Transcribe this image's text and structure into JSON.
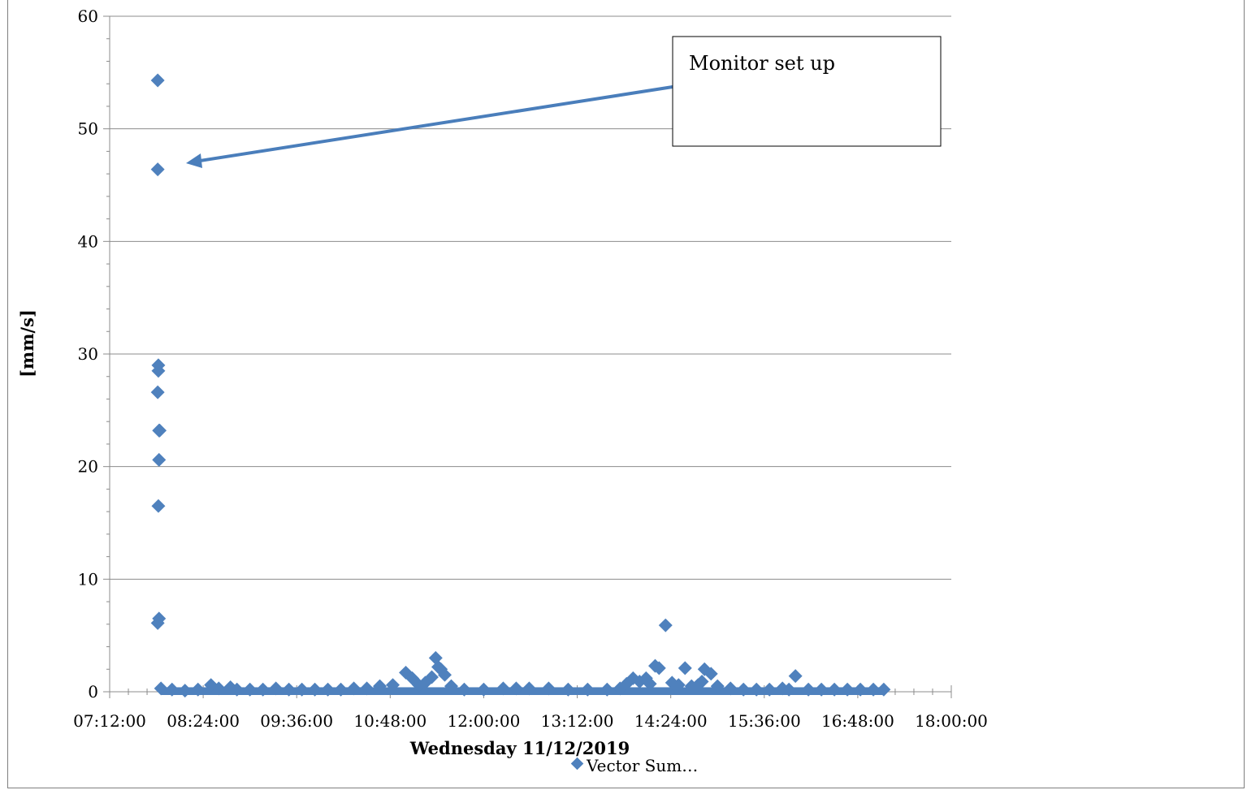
{
  "chart_data": {
    "type": "scatter",
    "title": "",
    "xlabel": "Wednesday 11/12/2019",
    "ylabel": "[mm/s]",
    "xlim": [
      "07:12:00",
      "18:00:00"
    ],
    "ylim": [
      0,
      60
    ],
    "xticks": [
      "07:12:00",
      "08:24:00",
      "09:36:00",
      "10:48:00",
      "12:00:00",
      "13:12:00",
      "14:24:00",
      "15:36:00",
      "16:48:00",
      "18:00:00"
    ],
    "yticks": [
      0,
      10,
      20,
      30,
      40,
      50,
      60
    ],
    "grid": "horizontal",
    "legend": "bottom",
    "marker_color": "#4f81bd",
    "annotation": {
      "text": "Monitor set up",
      "points_to": {
        "x": "07:50:00",
        "y": 47
      }
    },
    "series": [
      {
        "name": "Vector Sum…",
        "x": [
          "07:49:00",
          "07:49:00",
          "07:49:30",
          "07:49:30",
          "07:49:00",
          "07:50:00",
          "07:50:30",
          "07:50:00",
          "07:49:30",
          "07:49:00",
          "07:50:00",
          "07:51:30",
          "08:00:00",
          "08:10:00",
          "08:20:00",
          "08:30:00",
          "08:36:00",
          "08:45:00",
          "08:50:00",
          "09:00:00",
          "09:10:00",
          "09:20:00",
          "09:30:00",
          "09:40:00",
          "09:50:00",
          "10:00:00",
          "10:10:00",
          "10:20:00",
          "10:30:00",
          "10:40:00",
          "10:50:00",
          "11:00:00",
          "11:05:00",
          "11:10:00",
          "11:15:00",
          "11:20:00",
          "11:23:00",
          "11:25:00",
          "11:27:00",
          "11:30:00",
          "11:35:00",
          "11:45:00",
          "12:00:00",
          "12:15:00",
          "12:25:00",
          "12:35:00",
          "12:50:00",
          "13:05:00",
          "13:20:00",
          "13:35:00",
          "13:45:00",
          "13:50:00",
          "13:55:00",
          "14:00:00",
          "14:05:00",
          "14:08:00",
          "14:12:00",
          "14:15:00",
          "14:20:00",
          "14:25:00",
          "14:30:00",
          "14:35:00",
          "14:40:00",
          "14:45:00",
          "14:48:00",
          "14:50:00",
          "14:55:00",
          "15:00:00",
          "15:10:00",
          "15:20:00",
          "15:30:00",
          "15:40:00",
          "15:50:00",
          "15:55:00",
          "16:00:00",
          "16:10:00",
          "16:20:00",
          "16:30:00",
          "16:40:00",
          "16:50:00",
          "17:00:00",
          "17:08:00"
        ],
        "y": [
          54.3,
          46.4,
          29.0,
          28.5,
          26.6,
          23.2,
          23.2,
          20.6,
          16.5,
          6.1,
          6.5,
          0.3,
          0.2,
          0.1,
          0.2,
          0.6,
          0.3,
          0.4,
          0.2,
          0.2,
          0.2,
          0.3,
          0.2,
          0.2,
          0.2,
          0.2,
          0.2,
          0.3,
          0.3,
          0.5,
          0.6,
          1.7,
          1.2,
          0.6,
          0.8,
          1.3,
          3.0,
          2.2,
          2.0,
          1.5,
          0.5,
          0.2,
          0.2,
          0.3,
          0.3,
          0.3,
          0.3,
          0.2,
          0.2,
          0.2,
          0.3,
          0.7,
          1.2,
          0.9,
          1.2,
          0.7,
          2.3,
          2.1,
          5.9,
          0.8,
          0.6,
          2.1,
          0.5,
          0.6,
          0.9,
          2.0,
          1.6,
          0.5,
          0.3,
          0.2,
          0.2,
          0.2,
          0.3,
          0.2,
          1.4,
          0.2,
          0.2,
          0.2,
          0.2,
          0.2,
          0.2,
          0.2
        ]
      }
    ]
  }
}
